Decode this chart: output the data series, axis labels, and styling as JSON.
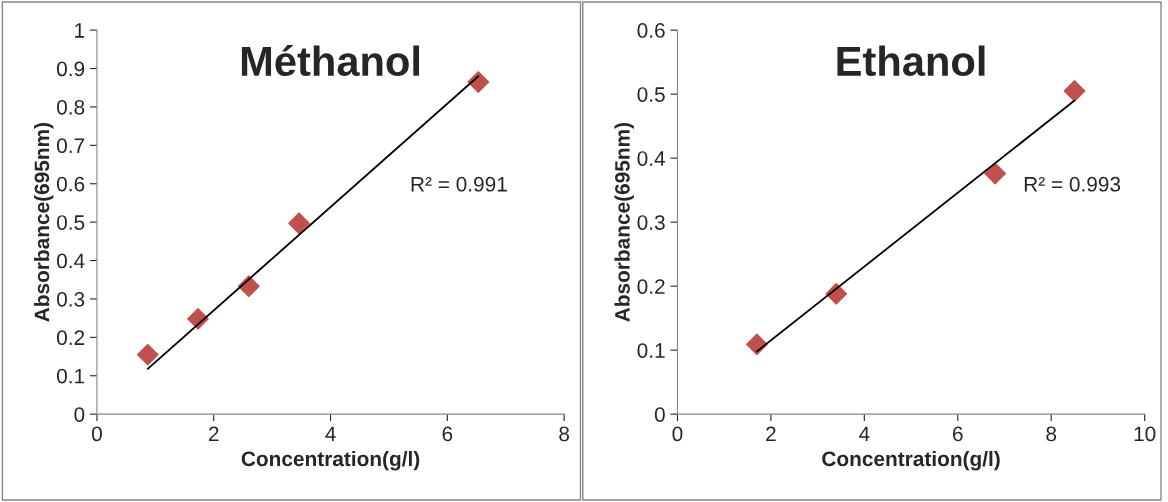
{
  "chart_data": [
    {
      "type": "scatter",
      "title": "Méthanol",
      "xlabel": "Concentration(g/l)",
      "ylabel": "Absorbance(695nm)",
      "xlim": [
        0,
        8
      ],
      "xticks": [
        0,
        2,
        4,
        6,
        8
      ],
      "ylim": [
        0,
        1
      ],
      "yticks": [
        0,
        0.1,
        0.2,
        0.3,
        0.4,
        0.5,
        0.6,
        0.7,
        0.8,
        0.9,
        1
      ],
      "grid": false,
      "legend": false,
      "annotations": [
        "R² = 0.991"
      ],
      "series": [
        {
          "color": "#c0504d",
          "marker": "diamond",
          "x": [
            0.87,
            1.73,
            2.6,
            3.46,
            6.53
          ],
          "values": [
            0.155,
            0.248,
            0.333,
            0.497,
            0.865
          ]
        },
        {
          "type": "line",
          "color": "#000000",
          "marker": "none",
          "line_style": "solid",
          "x": [
            0.87,
            6.53
          ],
          "values": [
            0.118,
            0.88
          ]
        }
      ]
    },
    {
      "type": "scatter",
      "title": "Ethanol",
      "xlabel": "Concentration(g/l)",
      "ylabel": "Absorbance(695nm)",
      "xlim": [
        0,
        10
      ],
      "xticks": [
        0,
        2,
        4,
        6,
        8,
        10
      ],
      "ylim": [
        0,
        0.6
      ],
      "yticks": [
        0,
        0.1,
        0.2,
        0.3,
        0.4,
        0.5,
        0.6
      ],
      "grid": false,
      "legend": false,
      "annotations": [
        "R² = 0.993"
      ],
      "series": [
        {
          "color": "#c0504d",
          "marker": "diamond",
          "x": [
            1.7,
            3.4,
            6.8,
            8.5
          ],
          "values": [
            0.109,
            0.188,
            0.376,
            0.505
          ]
        },
        {
          "type": "line",
          "color": "#000000",
          "marker": "none",
          "line_style": "solid",
          "x": [
            1.7,
            8.5
          ],
          "values": [
            0.098,
            0.49
          ]
        }
      ]
    }
  ]
}
